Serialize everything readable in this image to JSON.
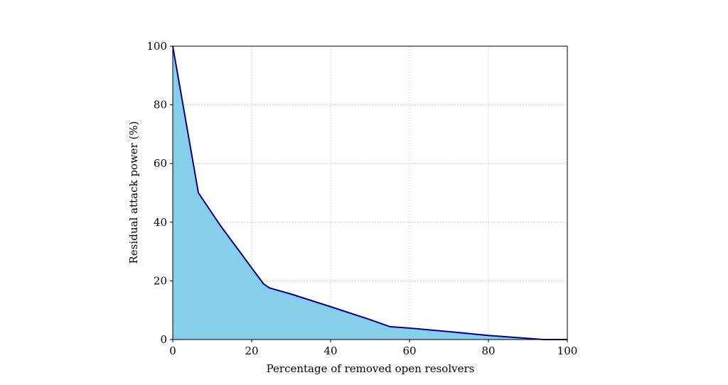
{
  "chart_data": {
    "type": "area",
    "title": "",
    "xlabel": "Percentage of removed open resolvers",
    "ylabel": "Residual attack power (%)",
    "xlim": [
      0,
      100
    ],
    "ylim": [
      0,
      100
    ],
    "x_ticks": [
      0,
      20,
      40,
      60,
      80,
      100
    ],
    "y_ticks": [
      0,
      20,
      40,
      60,
      80,
      100
    ],
    "grid": true,
    "grid_style": "dotted",
    "fill_color": "#87CEEB",
    "line_color": "#00008B",
    "series": [
      {
        "x": [
          0,
          6.5,
          12,
          17.5,
          20.5,
          23,
          24.5,
          30,
          40,
          50,
          55,
          60,
          70,
          80,
          90,
          94,
          100
        ],
        "y": [
          100,
          50,
          39,
          29,
          23.5,
          19,
          17.6,
          15.5,
          11.2,
          6.8,
          4.4,
          3.9,
          2.7,
          1.4,
          0.4,
          0,
          0
        ]
      }
    ]
  }
}
